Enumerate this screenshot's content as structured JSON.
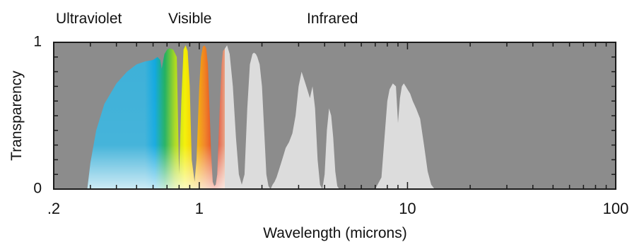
{
  "chart_data": {
    "type": "area",
    "title": "",
    "xlabel": "Wavelength (microns)",
    "ylabel": "Transparency",
    "xscale": "log",
    "xlim": [
      0.2,
      100
    ],
    "ylim": [
      0,
      1
    ],
    "x_ticks": [
      {
        "value": 0.2,
        "label": ".2"
      },
      {
        "value": 1,
        "label": "1"
      },
      {
        "value": 10,
        "label": "10"
      },
      {
        "value": 100,
        "label": "100"
      }
    ],
    "y_ticks": [
      {
        "value": 0,
        "label": "0"
      },
      {
        "value": 1,
        "label": "1"
      }
    ],
    "bands": [
      {
        "label": "Ultraviolet"
      },
      {
        "label": "Visible"
      },
      {
        "label": "Infrared"
      }
    ],
    "colors": {
      "plot_background": "#8c8c8c",
      "transmission_fill": "#dcdcdc",
      "visible_spectrum": [
        "#3cb0d8",
        "#10a8e0",
        "#20b060",
        "#a8d820",
        "#f4f000",
        "#f4c000",
        "#f08020",
        "#e03820",
        "#e8a080"
      ]
    },
    "series": [
      {
        "x": [
          0.29,
          0.3,
          0.32,
          0.35,
          0.4,
          0.45,
          0.5,
          0.55,
          0.6,
          0.63,
          0.65,
          0.66,
          0.68,
          0.7,
          0.72,
          0.75,
          0.78,
          0.79,
          0.8,
          0.82,
          0.84,
          0.86,
          0.88,
          0.9,
          0.92,
          0.95,
          0.97,
          1.0,
          1.02,
          1.04,
          1.06,
          1.08,
          1.1,
          1.12,
          1.14,
          1.16,
          1.18,
          1.2,
          1.22,
          1.25,
          1.28,
          1.3,
          1.33,
          1.36,
          1.4,
          1.45,
          1.5,
          1.55,
          1.6,
          1.65,
          1.7,
          1.75,
          1.8,
          1.83,
          1.87,
          1.9,
          1.95,
          2.0,
          2.05,
          2.1,
          2.15,
          2.2,
          2.25,
          2.3,
          2.35,
          2.4,
          2.5,
          2.6,
          2.7,
          2.8,
          2.9,
          3.0,
          3.1,
          3.2,
          3.3,
          3.4,
          3.5,
          3.6,
          3.7,
          3.8,
          3.9,
          4.0,
          4.1,
          4.2,
          4.3,
          4.4,
          4.5,
          4.6,
          4.7,
          4.8,
          4.9,
          5.0,
          5.1,
          5.2,
          5.5,
          6.0,
          7.0,
          7.5,
          7.8,
          8.0,
          8.2,
          8.5,
          8.8,
          9.0,
          9.2,
          9.4,
          9.6,
          9.8,
          10.0,
          10.3,
          10.6,
          11.0,
          11.5,
          12.0,
          12.5,
          13.0,
          13.5,
          14.0,
          15.0,
          20.0,
          30.0,
          100.0
        ],
        "y": [
          0.0,
          0.18,
          0.4,
          0.58,
          0.72,
          0.8,
          0.85,
          0.87,
          0.88,
          0.9,
          0.88,
          0.82,
          0.92,
          0.95,
          0.96,
          0.95,
          0.9,
          0.5,
          0.1,
          0.6,
          0.95,
          0.98,
          0.94,
          0.7,
          0.2,
          0.05,
          0.2,
          0.7,
          0.9,
          0.97,
          0.98,
          0.96,
          0.85,
          0.55,
          0.25,
          0.05,
          0.02,
          0.03,
          0.1,
          0.5,
          0.85,
          0.94,
          0.96,
          0.98,
          0.92,
          0.7,
          0.35,
          0.1,
          0.03,
          0.1,
          0.55,
          0.85,
          0.92,
          0.93,
          0.92,
          0.9,
          0.85,
          0.7,
          0.4,
          0.1,
          0.02,
          0.0,
          0.03,
          0.05,
          0.08,
          0.12,
          0.2,
          0.28,
          0.32,
          0.38,
          0.5,
          0.7,
          0.8,
          0.74,
          0.68,
          0.62,
          0.7,
          0.55,
          0.2,
          0.03,
          0.0,
          0.1,
          0.4,
          0.55,
          0.5,
          0.35,
          0.12,
          0.02,
          0.0,
          0.0,
          0.0,
          0.0,
          0.0,
          0.0,
          0.0,
          0.0,
          0.0,
          0.08,
          0.4,
          0.6,
          0.68,
          0.72,
          0.7,
          0.45,
          0.62,
          0.7,
          0.72,
          0.7,
          0.68,
          0.65,
          0.6,
          0.55,
          0.48,
          0.3,
          0.12,
          0.03,
          0.0,
          0.0,
          0.0,
          0.0,
          0.0,
          0.0
        ]
      }
    ]
  }
}
